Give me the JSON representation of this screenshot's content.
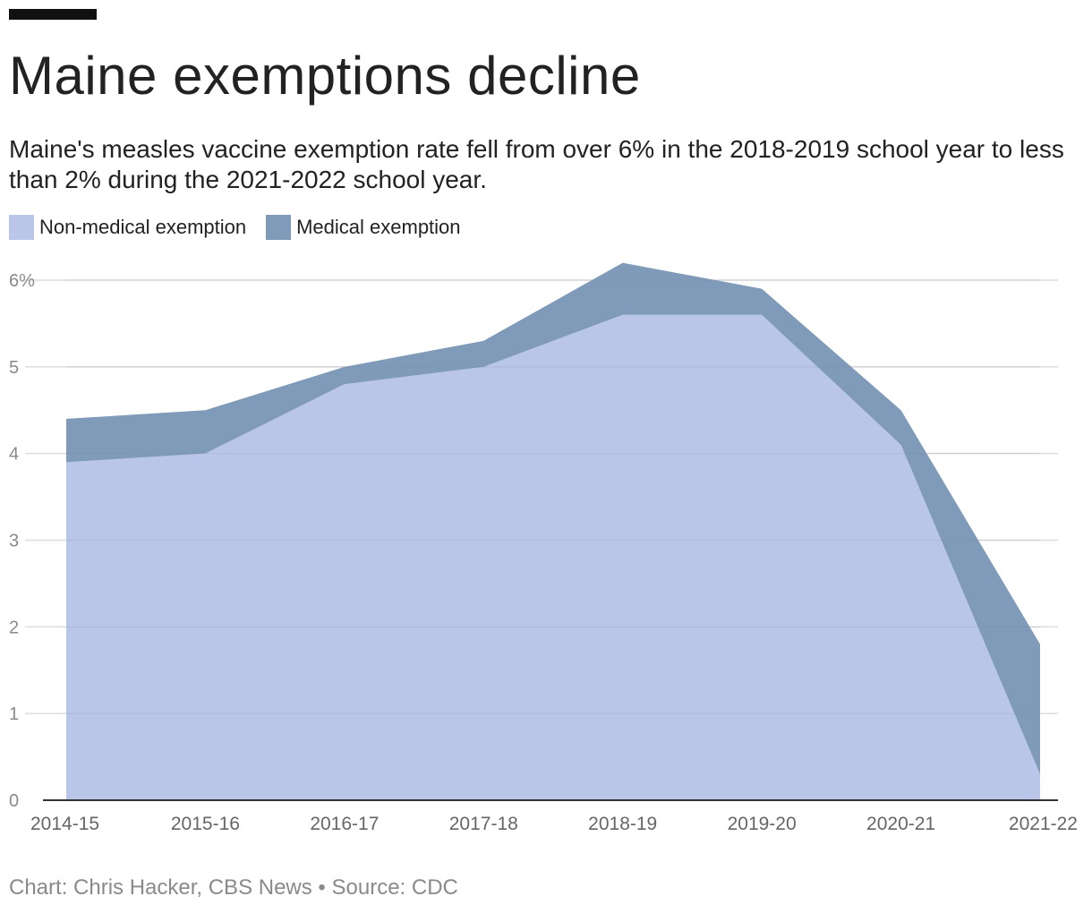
{
  "header": {
    "title": "Maine exemptions decline",
    "subtitle": "Maine's measles vaccine exemption rate fell from over 6% in the 2018-2019 school year to less than 2% during the 2021-2022 school year."
  },
  "legend": {
    "items": [
      {
        "label": "Non-medical exemption",
        "color": "#b9c6ea"
      },
      {
        "label": "Medical exemption",
        "color": "#7f9bb9"
      }
    ]
  },
  "footer": {
    "credit": "Chart: Chris Hacker, CBS News • Source: CDC"
  },
  "chart_data": {
    "type": "area",
    "stacked": true,
    "title": "Maine exemptions decline",
    "subtitle": "Maine's measles vaccine exemption rate fell from over 6% in the 2018-2019 school year to less than 2% during the 2021-2022 school year.",
    "categories": [
      "2014-15",
      "2015-16",
      "2016-17",
      "2017-18",
      "2018-19",
      "2019-20",
      "2020-21",
      "2021-22"
    ],
    "series": [
      {
        "name": "Non-medical exemption",
        "color": "#b9c6ea",
        "values": [
          3.9,
          4.0,
          4.8,
          5.0,
          5.6,
          5.6,
          4.1,
          0.3
        ]
      },
      {
        "name": "Medical exemption",
        "color": "#7f9bb9",
        "values": [
          0.5,
          0.5,
          0.2,
          0.3,
          0.6,
          0.3,
          0.4,
          1.5
        ]
      }
    ],
    "ylim": [
      0,
      6
    ],
    "yticks": [
      0,
      1,
      2,
      3,
      4,
      5,
      6
    ],
    "ytick_labels": [
      "0",
      "1",
      "2",
      "3",
      "4",
      "5",
      "6%"
    ],
    "grid": true,
    "legend_position": "top-left",
    "xlabel": "",
    "ylabel": ""
  }
}
